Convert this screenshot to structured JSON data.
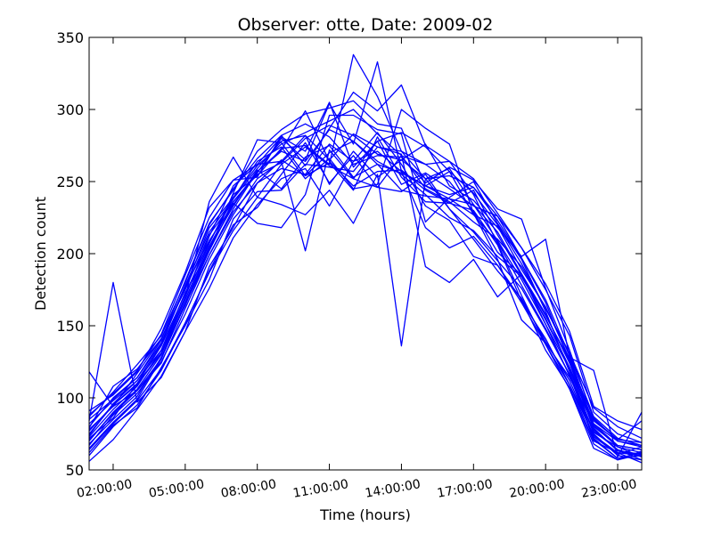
{
  "chart_data": {
    "type": "line",
    "title": "Observer: otte, Date: 2009-02",
    "xlabel": "Time (hours)",
    "ylabel": "Detection count",
    "xlim": [
      1,
      24
    ],
    "ylim": [
      50,
      350
    ],
    "x_ticks": [
      2,
      5,
      8,
      11,
      14,
      17,
      20,
      23
    ],
    "x_tick_labels": [
      "02:00:00",
      "05:00:00",
      "08:00:00",
      "11:00:00",
      "14:00:00",
      "17:00:00",
      "20:00:00",
      "23:00:00"
    ],
    "y_ticks": [
      50,
      100,
      150,
      200,
      250,
      300,
      350
    ],
    "y_tick_labels": [
      "50",
      "100",
      "150",
      "200",
      "250",
      "300",
      "350"
    ],
    "grid": false,
    "line_color": "#0000ff",
    "x": [
      1,
      2,
      3,
      4,
      5,
      6,
      7,
      8,
      9,
      10,
      11,
      12,
      13,
      14,
      15,
      16,
      17,
      18,
      19,
      20,
      21,
      22,
      23,
      24
    ],
    "series": [
      {
        "values": [
          118,
          94,
          105,
          124,
          162,
          199,
          231,
          257,
          271,
          264,
          286,
          278,
          262,
          256,
          247,
          241,
          246,
          226,
          197,
          166,
          125,
          86,
          70,
          67
        ]
      },
      {
        "values": [
          72,
          86,
          110,
          136,
          172,
          208,
          238,
          259,
          278,
          282,
          265,
          283,
          274,
          271,
          252,
          259,
          234,
          209,
          182,
          151,
          115,
          76,
          66,
          62
        ]
      },
      {
        "values": [
          84,
          180,
          97,
          114,
          146,
          191,
          218,
          249,
          259,
          255,
          276,
          264,
          284,
          262,
          233,
          223,
          198,
          192,
          168,
          133,
          107,
          68,
          57,
          61
        ]
      },
      {
        "values": [
          62,
          81,
          93,
          121,
          150,
          182,
          224,
          243,
          244,
          262,
          260,
          257,
          278,
          248,
          256,
          245,
          233,
          226,
          204,
          175,
          143,
          90,
          75,
          69
        ]
      },
      {
        "values": [
          79,
          108,
          120,
          141,
          176,
          218,
          239,
          261,
          276,
          284,
          292,
          300,
          283,
          268,
          262,
          250,
          229,
          201,
          185,
          157,
          126,
          78,
          64,
          57
        ]
      },
      {
        "values": [
          91,
          102,
          118,
          148,
          187,
          232,
          251,
          262,
          281,
          271,
          305,
          260,
          278,
          284,
          274,
          257,
          242,
          220,
          193,
          162,
          131,
          93,
          80,
          72
        ]
      },
      {
        "values": [
          67,
          88,
          103,
          125,
          158,
          196,
          227,
          252,
          264,
          282,
          248,
          271,
          253,
          265,
          252,
          231,
          210,
          188,
          169,
          139,
          112,
          73,
          61,
          66
        ]
      },
      {
        "values": [
          75,
          95,
          110,
          131,
          164,
          204,
          233,
          258,
          245,
          267,
          275,
          253,
          262,
          244,
          240,
          238,
          234,
          215,
          186,
          158,
          124,
          80,
          67,
          64
        ]
      },
      {
        "values": [
          56,
          71,
          92,
          115,
          146,
          176,
          211,
          234,
          252,
          259,
          233,
          264,
          271,
          257,
          247,
          238,
          227,
          208,
          178,
          148,
          116,
          71,
          58,
          60
        ]
      },
      {
        "values": [
          87,
          104,
          123,
          143,
          180,
          220,
          245,
          266,
          282,
          261,
          287,
          312,
          299,
          317,
          275,
          264,
          252,
          228,
          204,
          179,
          146,
          94,
          84,
          78
        ]
      },
      {
        "values": [
          65,
          83,
          99,
          127,
          165,
          202,
          235,
          221,
          218,
          241,
          296,
          296,
          286,
          283,
          222,
          239,
          250,
          221,
          196,
          160,
          118,
          72,
          58,
          62
        ]
      },
      {
        "values": [
          70,
          90,
          106,
          130,
          168,
          207,
          241,
          254,
          273,
          275,
          262,
          338,
          309,
          271,
          262,
          264,
          241,
          207,
          171,
          137,
          106,
          65,
          57,
          63
        ]
      },
      {
        "values": [
          80,
          100,
          114,
          138,
          178,
          215,
          238,
          264,
          274,
          252,
          266,
          245,
          248,
          300,
          287,
          276,
          228,
          196,
          154,
          138,
          114,
          82,
          70,
          66
        ]
      },
      {
        "values": [
          73,
          92,
          108,
          133,
          170,
          212,
          247,
          262,
          264,
          202,
          272,
          252,
          274,
          269,
          191,
          180,
          196,
          170,
          186,
          151,
          120,
          75,
          60,
          57
        ]
      },
      {
        "values": [
          82,
          98,
          112,
          137,
          177,
          209,
          234,
          257,
          272,
          299,
          264,
          247,
          257,
          258,
          244,
          235,
          244,
          213,
          185,
          154,
          121,
          84,
          71,
          69
        ]
      },
      {
        "values": [
          68,
          85,
          101,
          128,
          166,
          205,
          236,
          256,
          280,
          265,
          304,
          276,
          333,
          257,
          218,
          204,
          212,
          192,
          166,
          137,
          109,
          70,
          62,
          60
        ]
      },
      {
        "values": [
          77,
          95,
          109,
          131,
          170,
          236,
          267,
          239,
          234,
          227,
          244,
          221,
          255,
          136,
          252,
          254,
          246,
          223,
          197,
          168,
          129,
          81,
          66,
          59
        ]
      },
      {
        "values": [
          88,
          103,
          119,
          144,
          185,
          225,
          251,
          253,
          282,
          290,
          281,
          262,
          268,
          267,
          249,
          260,
          251,
          231,
          224,
          176,
          133,
          85,
          71,
          84
        ]
      },
      {
        "values": [
          60,
          80,
          95,
          119,
          151,
          188,
          220,
          232,
          255,
          277,
          249,
          268,
          246,
          243,
          255,
          231,
          215,
          195,
          176,
          147,
          116,
          77,
          64,
          59
        ]
      },
      {
        "values": [
          74,
          96,
          112,
          133,
          173,
          202,
          242,
          279,
          277,
          254,
          263,
          244,
          281,
          253,
          236,
          235,
          230,
          206,
          167,
          141,
          109,
          74,
          62,
          55
        ]
      },
      {
        "values": [
          85,
          99,
          114,
          140,
          181,
          221,
          244,
          271,
          286,
          297,
          301,
          306,
          290,
          287,
          247,
          257,
          227,
          219,
          189,
          163,
          127,
          82,
          67,
          64
        ]
      },
      {
        "values": [
          71,
          89,
          105,
          127,
          165,
          199,
          229,
          249,
          265,
          254,
          270,
          278,
          264,
          255,
          241,
          225,
          216,
          198,
          184,
          155,
          121,
          79,
          63,
          61
        ]
      },
      {
        "values": [
          64,
          82,
          98,
          120,
          152,
          187,
          216,
          239,
          262,
          274,
          261,
          252,
          246,
          268,
          245,
          236,
          222,
          210,
          191,
          162,
          130,
          87,
          72,
          67
        ]
      },
      {
        "values": [
          78,
          94,
          117,
          141,
          175,
          213,
          236,
          255,
          263,
          280,
          289,
          282,
          269,
          265,
          276,
          247,
          237,
          218,
          198,
          210,
          128,
          119,
          59,
          90
        ]
      }
    ]
  }
}
